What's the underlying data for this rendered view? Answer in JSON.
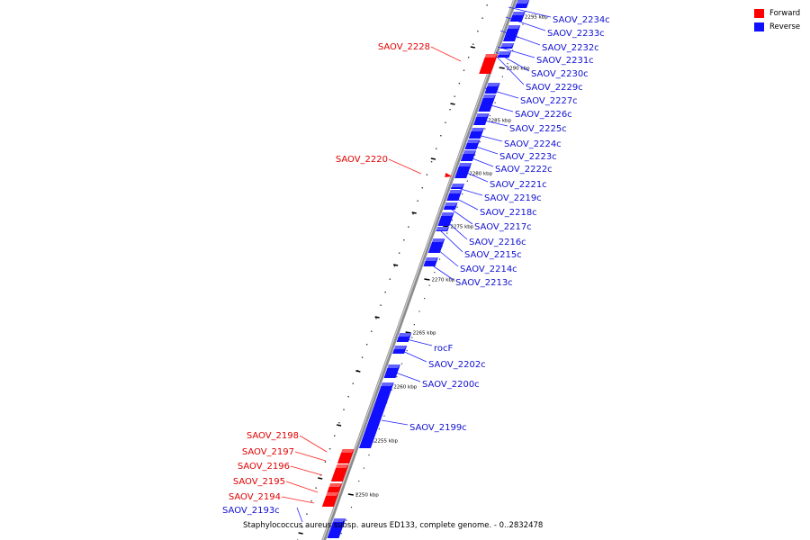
{
  "legend": {
    "forward": {
      "label": "Forward",
      "color": "#ff0000"
    },
    "reverse": {
      "label": "Reverse",
      "color": "#1010ff"
    }
  },
  "caption": "Staphylococcus aureus subsp. aureus ED133, complete genome. - 0..2832478",
  "axis_ticks": [
    "2295 kbp",
    "2290 kbp",
    "2285 kbp",
    "2280 kbp",
    "2275 kbp",
    "2270 kbp",
    "2265 kbp",
    "2260 kbp",
    "2255 kbp",
    "2250 kbp"
  ],
  "genes": {
    "forward": [
      "SAOV_2228",
      "SAOV_2220",
      "SAOV_2198",
      "SAOV_2197",
      "SAOV_2196",
      "SAOV_2195",
      "SAOV_2194"
    ],
    "reverse": [
      "SAOV_2234c",
      "SAOV_2233c",
      "SAOV_2232c",
      "SAOV_2231c",
      "SAOV_2230c",
      "SAOV_2229c",
      "SAOV_2227c",
      "SAOV_2226c",
      "SAOV_2225c",
      "SAOV_2224c",
      "SAOV_2223c",
      "SAOV_2222c",
      "SAOV_2221c",
      "SAOV_2219c",
      "SAOV_2218c",
      "SAOV_2217c",
      "SAOV_2216c",
      "SAOV_2215c",
      "SAOV_2214c",
      "SAOV_2213c",
      "rocF",
      "SAOV_2202c",
      "SAOV_2200c",
      "SAOV_2199c",
      "SAOV_2193c"
    ]
  }
}
